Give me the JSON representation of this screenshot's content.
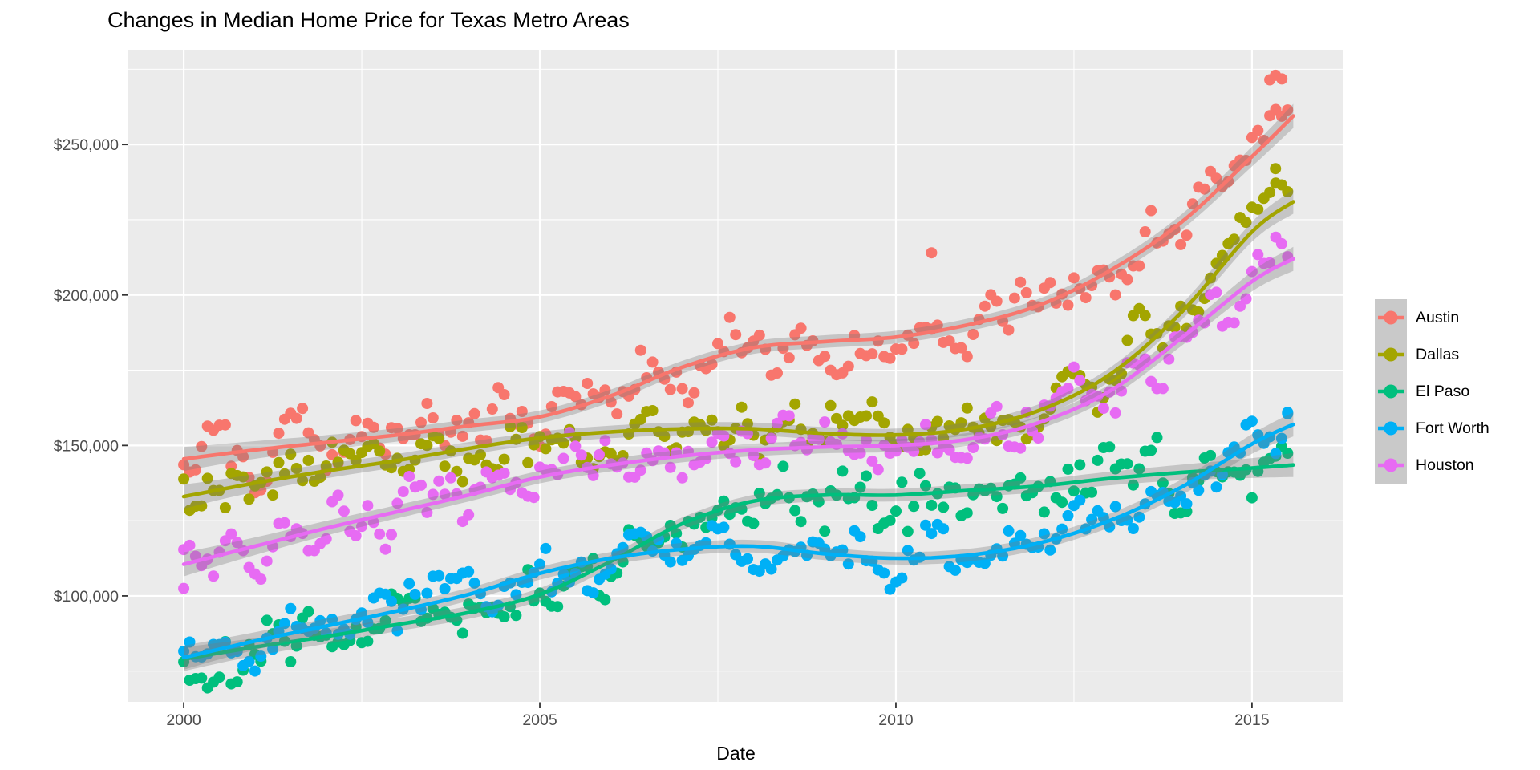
{
  "title": "Changes in Median Home Price for Texas Metro Areas",
  "axes": {
    "x": {
      "label": "Date",
      "ticks": [
        2000,
        2005,
        2010,
        2015
      ],
      "minor_ticks": [
        2002.5,
        2007.5,
        2012.5
      ],
      "range": [
        1999.222,
        2016.285
      ]
    },
    "y": {
      "label": "",
      "ticks": [
        {
          "label": "$100,000",
          "value": 100000
        },
        {
          "label": "$150,000",
          "value": 150000
        },
        {
          "label": "$200,000",
          "value": 200000
        },
        {
          "label": "$250,000",
          "value": 250000
        }
      ],
      "minor_tick_values": [
        75000,
        125000,
        175000,
        225000,
        275000
      ],
      "range": [
        64800,
        281500
      ]
    }
  },
  "legend": {
    "entries": [
      {
        "label": "Austin",
        "color": "#F8766D"
      },
      {
        "label": "Dallas",
        "color": "#A3A500"
      },
      {
        "label": "El Paso",
        "color": "#00BF7D"
      },
      {
        "label": "Fort Worth",
        "color": "#00B0F6"
      },
      {
        "label": "Houston",
        "color": "#E76BF3"
      }
    ]
  },
  "style": {
    "panel_background": "#EBEBEB",
    "gridline_color": "#FFFFFF",
    "tick_mark_color": "#333333",
    "tick_label_color": "#4D4D4D",
    "ci_band_color": "rgba(120,120,120,0.33)",
    "legend_key_background": "#C9C9C9"
  },
  "chart_data": {
    "type": "scatter",
    "smoother": "loess with confidence band",
    "title": "Changes in Median Home Price for Texas Metro Areas",
    "xlabel": "Date",
    "ylabel": "",
    "x_unit": "year, monthly samples",
    "x_start": 2000.0,
    "x_end": 2015.5,
    "samples_per_year": 12,
    "xlim": [
      1999.222,
      2016.285
    ],
    "ylim": [
      64800,
      281500
    ],
    "grid": "major white + minor white on grey panel",
    "legend_position": "right",
    "series": [
      {
        "name": "Austin",
        "color": "#F8766D",
        "seed": 101,
        "scatter_sigma": 5000,
        "seasonal_amplitude": 2800,
        "trend": [
          [
            2000,
            145500
          ],
          [
            2001,
            148500
          ],
          [
            2002,
            151000
          ],
          [
            2003,
            153500
          ],
          [
            2004,
            156500
          ],
          [
            2005,
            159500
          ],
          [
            2006,
            166500
          ],
          [
            2007,
            176000
          ],
          [
            2008,
            182500
          ],
          [
            2009,
            184500
          ],
          [
            2010,
            186000
          ],
          [
            2011,
            190000
          ],
          [
            2012,
            196500
          ],
          [
            2013,
            208000
          ],
          [
            2014,
            224000
          ],
          [
            2015,
            246000
          ],
          [
            2015.58,
            259500
          ]
        ],
        "outliers": [
          [
            2010.5,
            214000
          ],
          [
            2015.25,
            271500
          ],
          [
            2015.33,
            273000
          ],
          [
            2015.42,
            271800
          ]
        ]
      },
      {
        "name": "Dallas",
        "color": "#A3A500",
        "seed": 202,
        "scatter_sigma": 4800,
        "seasonal_amplitude": 2500,
        "trend": [
          [
            2000,
            133000
          ],
          [
            2001,
            137500
          ],
          [
            2002,
            141500
          ],
          [
            2003,
            145000
          ],
          [
            2004,
            149000
          ],
          [
            2005,
            152500
          ],
          [
            2006,
            154500
          ],
          [
            2007,
            155500
          ],
          [
            2008,
            155500
          ],
          [
            2009,
            154000
          ],
          [
            2010,
            153500
          ],
          [
            2011,
            155500
          ],
          [
            2012,
            161500
          ],
          [
            2013,
            173500
          ],
          [
            2014,
            194000
          ],
          [
            2015,
            221000
          ],
          [
            2015.58,
            231000
          ]
        ],
        "outliers": [
          [
            2015.33,
            242000
          ]
        ]
      },
      {
        "name": "El Paso",
        "color": "#00BF7D",
        "seed": 303,
        "scatter_sigma": 5200,
        "seasonal_amplitude": 1500,
        "trend": [
          [
            2000,
            79000
          ],
          [
            2001,
            83000
          ],
          [
            2002,
            86500
          ],
          [
            2003,
            90500
          ],
          [
            2004,
            94500
          ],
          [
            2005,
            100500
          ],
          [
            2006,
            111500
          ],
          [
            2007,
            124000
          ],
          [
            2008,
            131500
          ],
          [
            2009,
            133500
          ],
          [
            2010,
            133500
          ],
          [
            2011,
            135000
          ],
          [
            2012,
            136500
          ],
          [
            2013,
            139000
          ],
          [
            2014,
            141000
          ],
          [
            2015,
            142500
          ],
          [
            2015.58,
            143500
          ]
        ],
        "outliers": []
      },
      {
        "name": "Fort Worth",
        "color": "#00B0F6",
        "seed": 404,
        "scatter_sigma": 4200,
        "seasonal_amplitude": 2200,
        "trend": [
          [
            2000,
            79500
          ],
          [
            2001,
            85000
          ],
          [
            2002,
            90000
          ],
          [
            2003,
            95000
          ],
          [
            2004,
            100500
          ],
          [
            2005,
            107500
          ],
          [
            2006,
            112500
          ],
          [
            2007,
            115500
          ],
          [
            2008,
            116500
          ],
          [
            2009,
            114000
          ],
          [
            2010,
            112500
          ],
          [
            2011,
            113500
          ],
          [
            2012,
            117500
          ],
          [
            2013,
            125000
          ],
          [
            2014,
            136000
          ],
          [
            2015,
            150500
          ],
          [
            2015.58,
            157000
          ]
        ],
        "outliers": [
          [
            2015.5,
            161000
          ]
        ]
      },
      {
        "name": "Houston",
        "color": "#E76BF3",
        "seed": 505,
        "scatter_sigma": 5000,
        "seasonal_amplitude": 2800,
        "trend": [
          [
            2000,
            110500
          ],
          [
            2001,
            116500
          ],
          [
            2002,
            122500
          ],
          [
            2003,
            128000
          ],
          [
            2004,
            133500
          ],
          [
            2005,
            139500
          ],
          [
            2006,
            143500
          ],
          [
            2007,
            146500
          ],
          [
            2008,
            148500
          ],
          [
            2009,
            149500
          ],
          [
            2010,
            150000
          ],
          [
            2011,
            152000
          ],
          [
            2012,
            157500
          ],
          [
            2013,
            168000
          ],
          [
            2014,
            185500
          ],
          [
            2015,
            204500
          ],
          [
            2015.58,
            212000
          ]
        ],
        "outliers": [
          [
            2000.0,
            102500
          ]
        ]
      }
    ],
    "ci_halfwidth_usd": {
      "middle": 2100,
      "edges": 4000
    }
  }
}
